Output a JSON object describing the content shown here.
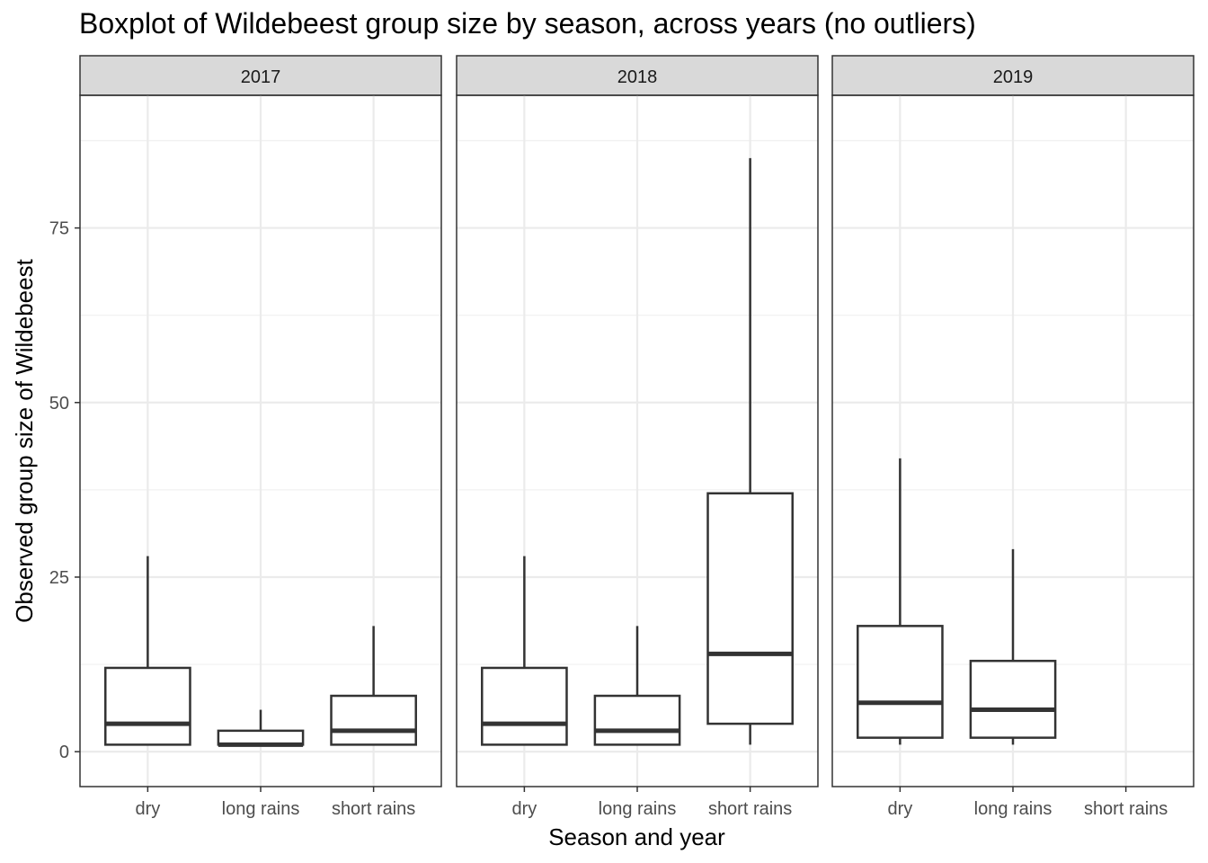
{
  "chart_data": {
    "type": "boxplot",
    "title": "Boxplot of Wildebeest group size by season, across years (no outliers)",
    "xlabel": "Season and year",
    "ylabel": "Observed group size of Wildebeest",
    "ylim": [
      -5,
      94
    ],
    "yticks": [
      0,
      25,
      50,
      75
    ],
    "categories": [
      "dry",
      "long rains",
      "short rains"
    ],
    "grid": true,
    "facets": [
      {
        "label": "2017",
        "boxes": [
          {
            "category": "dry",
            "min": 1,
            "q1": 1,
            "median": 4,
            "q3": 12,
            "max": 28
          },
          {
            "category": "long rains",
            "min": 1,
            "q1": 1,
            "median": 1,
            "q3": 3,
            "max": 6
          },
          {
            "category": "short rains",
            "min": 1,
            "q1": 1,
            "median": 3,
            "q3": 8,
            "max": 18
          }
        ]
      },
      {
        "label": "2018",
        "boxes": [
          {
            "category": "dry",
            "min": 1,
            "q1": 1,
            "median": 4,
            "q3": 12,
            "max": 28
          },
          {
            "category": "long rains",
            "min": 1,
            "q1": 1,
            "median": 3,
            "q3": 8,
            "max": 18
          },
          {
            "category": "short rains",
            "min": 1,
            "q1": 4,
            "median": 14,
            "q3": 37,
            "max": 85
          }
        ]
      },
      {
        "label": "2019",
        "boxes": [
          {
            "category": "dry",
            "min": 1,
            "q1": 2,
            "median": 7,
            "q3": 18,
            "max": 42
          },
          {
            "category": "long rains",
            "min": 1,
            "q1": 2,
            "median": 6,
            "q3": 13,
            "max": 29
          },
          {
            "category": "short rains",
            "min": null,
            "q1": null,
            "median": null,
            "q3": null,
            "max": null
          }
        ]
      }
    ]
  }
}
